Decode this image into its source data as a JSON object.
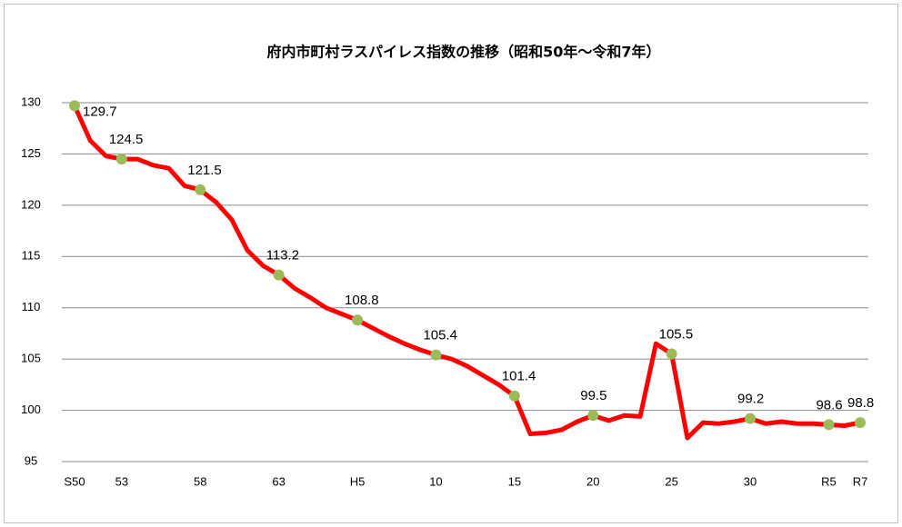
{
  "chart_data": {
    "type": "line",
    "title": "府内市町村ラスパイレス指数の推移（昭和50年～令和7年）",
    "categories": [
      "S50",
      null,
      null,
      "53",
      null,
      null,
      null,
      null,
      "58",
      null,
      null,
      null,
      null,
      "63",
      null,
      null,
      null,
      null,
      "H5",
      null,
      null,
      null,
      null,
      "10",
      null,
      null,
      null,
      null,
      "15",
      null,
      null,
      null,
      null,
      "20",
      null,
      null,
      null,
      null,
      "25",
      null,
      null,
      null,
      null,
      "30",
      null,
      null,
      null,
      null,
      "R5",
      null,
      "R7"
    ],
    "series": [
      {
        "color": "#ff0000",
        "marker_color": "#9bbb59",
        "values": [
          129.7,
          126.3,
          124.8,
          124.5,
          124.5,
          123.9,
          123.6,
          121.9,
          121.5,
          120.3,
          118.6,
          115.6,
          114.1,
          113.2,
          111.9,
          111.0,
          110.0,
          109.4,
          108.8,
          108.0,
          107.2,
          106.5,
          105.9,
          105.4,
          105.0,
          104.3,
          103.4,
          102.5,
          101.4,
          97.7,
          97.8,
          98.1,
          98.9,
          99.5,
          99.0,
          99.5,
          99.4,
          106.5,
          105.5,
          97.3,
          98.8,
          98.7,
          98.9,
          99.2,
          98.7,
          98.9,
          98.7,
          98.7,
          98.6,
          98.5,
          98.8
        ],
        "value_labels": [
          "129.7",
          null,
          null,
          "124.5",
          null,
          null,
          null,
          null,
          "121.5",
          null,
          null,
          null,
          null,
          "113.2",
          null,
          null,
          null,
          null,
          "108.8",
          null,
          null,
          null,
          null,
          "105.4",
          null,
          null,
          null,
          null,
          "101.4",
          null,
          null,
          null,
          null,
          "99.5",
          null,
          null,
          null,
          null,
          "105.5",
          null,
          null,
          null,
          null,
          "99.2",
          null,
          null,
          null,
          null,
          "98.6",
          null,
          "98.8"
        ]
      }
    ],
    "ylim": [
      95,
      130
    ],
    "yticks": [
      95,
      100,
      105,
      110,
      115,
      120,
      125,
      130
    ],
    "grid": true
  }
}
